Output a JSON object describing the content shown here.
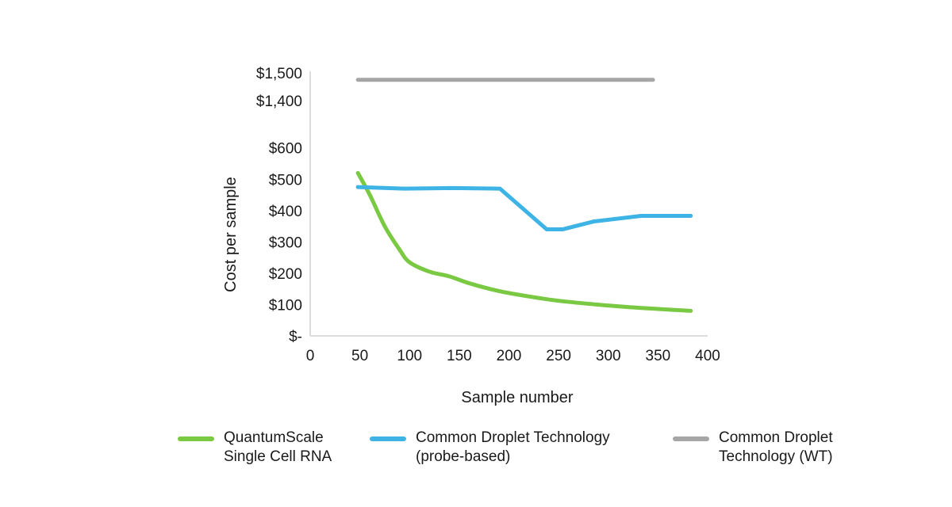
{
  "chart_data": {
    "type": "line",
    "xlabel": "Sample number",
    "ylabel": "Cost per sample",
    "xlim": [
      0,
      400
    ],
    "x_ticks": [
      "0",
      "50",
      "100",
      "150",
      "200",
      "250",
      "300",
      "350",
      "400"
    ],
    "y_ticks": [
      {
        "value": 0,
        "label": "$-"
      },
      {
        "value": 100,
        "label": "$100"
      },
      {
        "value": 200,
        "label": "$200"
      },
      {
        "value": 300,
        "label": "$300"
      },
      {
        "value": 400,
        "label": "$400"
      },
      {
        "value": 500,
        "label": "$500"
      },
      {
        "value": 600,
        "label": "$600"
      },
      {
        "value": 1400,
        "label": "$1,400"
      },
      {
        "value": 1500,
        "label": "$1,500"
      }
    ],
    "y_axis_break": [
      600,
      1400
    ],
    "grid": false,
    "legend_position": "bottom",
    "series": [
      {
        "name_lines": [
          "QuantumScale",
          "Single Cell RNA"
        ],
        "color": "#7ac943",
        "x": [
          48,
          60,
          75,
          90,
          100,
          120,
          140,
          160,
          190,
          220,
          250,
          285,
          320,
          350,
          383
        ],
        "y": [
          520,
          450,
          350,
          275,
          235,
          205,
          190,
          168,
          143,
          126,
          112,
          101,
          92,
          86,
          80
        ]
      },
      {
        "name_lines": [
          "Common Droplet Technology",
          "(probe-based)"
        ],
        "color": "#3db4e5",
        "x": [
          48,
          95,
          143,
          191,
          238,
          254,
          285,
          333,
          383
        ],
        "y": [
          475,
          470,
          472,
          470,
          340,
          340,
          365,
          383,
          383
        ]
      },
      {
        "name_lines": [
          "Common Droplet",
          "Technology (WT)"
        ],
        "color": "#a6a6a6",
        "x": [
          48,
          345
        ],
        "y": [
          1475,
          1475
        ]
      }
    ]
  }
}
